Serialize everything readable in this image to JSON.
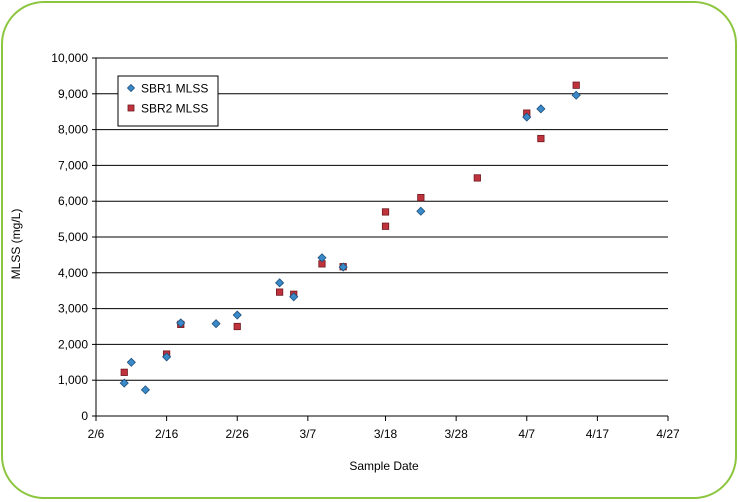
{
  "chart_data": {
    "type": "scatter",
    "title": "",
    "xlabel": "Sample Date",
    "ylabel": "MLSS (mg/L)",
    "x_axis_type": "date",
    "year": 2008,
    "xlim": [
      "2008-02-06",
      "2008-04-27"
    ],
    "ylim": [
      0,
      10000
    ],
    "x_ticks": [
      {
        "date": "2008-02-06",
        "label": "2/6"
      },
      {
        "date": "2008-02-16",
        "label": "2/16"
      },
      {
        "date": "2008-02-26",
        "label": "2/26"
      },
      {
        "date": "2008-03-07",
        "label": "3/7"
      },
      {
        "date": "2008-03-18",
        "label": "3/18"
      },
      {
        "date": "2008-03-28",
        "label": "3/28"
      },
      {
        "date": "2008-04-07",
        "label": "4/7"
      },
      {
        "date": "2008-04-17",
        "label": "4/17"
      },
      {
        "date": "2008-04-27",
        "label": "4/27"
      }
    ],
    "y_ticks": [
      {
        "value": 0,
        "label": "0"
      },
      {
        "value": 1000,
        "label": "1,000"
      },
      {
        "value": 2000,
        "label": "2,000"
      },
      {
        "value": 3000,
        "label": "3,000"
      },
      {
        "value": 4000,
        "label": "4,000"
      },
      {
        "value": 5000,
        "label": "5,000"
      },
      {
        "value": 6000,
        "label": "6,000"
      },
      {
        "value": 7000,
        "label": "7,000"
      },
      {
        "value": 8000,
        "label": "8,000"
      },
      {
        "value": 9000,
        "label": "9,000"
      },
      {
        "value": 10000,
        "label": "10,000"
      }
    ],
    "grid": {
      "horizontal": true,
      "vertical": false
    },
    "legend": {
      "placement": "top-left",
      "entries": [
        "SBR1 MLSS",
        "SBR2 MLSS"
      ]
    },
    "series": [
      {
        "name": "SBR1 MLSS",
        "marker": "diamond",
        "color": "#3a8ac9",
        "points": [
          {
            "x": "2008-02-10",
            "y": 920
          },
          {
            "x": "2008-02-11",
            "y": 1500
          },
          {
            "x": "2008-02-13",
            "y": 730
          },
          {
            "x": "2008-02-16",
            "y": 1650
          },
          {
            "x": "2008-02-18",
            "y": 2600
          },
          {
            "x": "2008-02-23",
            "y": 2580
          },
          {
            "x": "2008-02-26",
            "y": 2820
          },
          {
            "x": "2008-03-03",
            "y": 3720
          },
          {
            "x": "2008-03-05",
            "y": 3330
          },
          {
            "x": "2008-03-09",
            "y": 4420
          },
          {
            "x": "2008-03-12",
            "y": 4160
          },
          {
            "x": "2008-03-23",
            "y": 5720
          },
          {
            "x": "2008-04-07",
            "y": 8350
          },
          {
            "x": "2008-04-09",
            "y": 8580
          },
          {
            "x": "2008-04-14",
            "y": 8960
          }
        ]
      },
      {
        "name": "SBR2 MLSS",
        "marker": "square",
        "color": "#c0323c",
        "points": [
          {
            "x": "2008-02-10",
            "y": 1220
          },
          {
            "x": "2008-02-16",
            "y": 1730
          },
          {
            "x": "2008-02-18",
            "y": 2560
          },
          {
            "x": "2008-02-26",
            "y": 2500
          },
          {
            "x": "2008-03-03",
            "y": 3460
          },
          {
            "x": "2008-03-05",
            "y": 3400
          },
          {
            "x": "2008-03-09",
            "y": 4250
          },
          {
            "x": "2008-03-12",
            "y": 4170
          },
          {
            "x": "2008-03-18",
            "y": 5700
          },
          {
            "x": "2008-03-18",
            "y": 5300
          },
          {
            "x": "2008-03-23",
            "y": 6100
          },
          {
            "x": "2008-03-31",
            "y": 6650
          },
          {
            "x": "2008-04-07",
            "y": 8460
          },
          {
            "x": "2008-04-09",
            "y": 7750
          },
          {
            "x": "2008-04-14",
            "y": 9240
          }
        ]
      }
    ]
  },
  "colors": {
    "frame_border": "#8cc63f",
    "gridline": "#000000",
    "sbr1_fill": "#3a8ac9",
    "sbr2_fill": "#c0323c"
  }
}
